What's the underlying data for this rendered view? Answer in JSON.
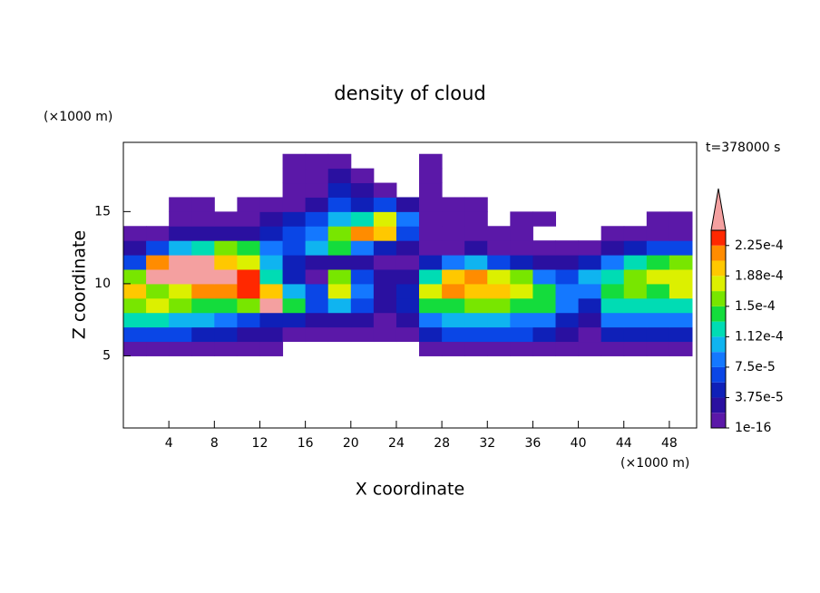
{
  "chart_data": {
    "type": "contour",
    "title": "density of cloud",
    "x_label": "X coordinate",
    "y_label": "Z coordinate",
    "x_unit": "(×1000 m)",
    "y_unit": "(×1000 m)",
    "annotation": "t=378000 s",
    "xlim": [
      0,
      50.4
    ],
    "ylim": [
      0,
      19.8
    ],
    "xticks": [
      4,
      8,
      12,
      16,
      20,
      24,
      28,
      32,
      36,
      40,
      44,
      48
    ],
    "yticks": [
      5,
      10,
      15
    ],
    "x": [
      1,
      3,
      5,
      7,
      9,
      11,
      13,
      15,
      17,
      19,
      21,
      23,
      25,
      27,
      29,
      31,
      33,
      35,
      37,
      39,
      41,
      43,
      45,
      47,
      49
    ],
    "y": [
      5.5,
      6.5,
      7.5,
      8.5,
      9.5,
      10.5,
      11.5,
      12.5,
      13.5,
      14.5,
      15.5,
      16.5,
      17.5,
      18.5
    ],
    "values": [
      [
        5e-06,
        5e-06,
        5e-06,
        5e-06,
        5e-06,
        5e-06,
        5e-06,
        null,
        null,
        null,
        null,
        null,
        null,
        5e-06,
        5e-06,
        5e-06,
        5e-06,
        5e-06,
        5e-06,
        5e-06,
        5e-06,
        5e-06,
        5e-06,
        5e-06,
        5e-06
      ],
      [
        6.5e-05,
        6.5e-05,
        6.5e-05,
        4.5e-05,
        4.5e-05,
        2.5e-05,
        2.5e-05,
        5e-06,
        5e-06,
        5e-06,
        5e-06,
        5e-06,
        5e-06,
        4.5e-05,
        6.5e-05,
        6.5e-05,
        6.5e-05,
        6.5e-05,
        4.5e-05,
        2.5e-05,
        5e-06,
        4.5e-05,
        4.5e-05,
        4.5e-05,
        4.5e-05
      ],
      [
        0.00012,
        0.00012,
        0.0001,
        0.0001,
        8.5e-05,
        6.5e-05,
        4.5e-05,
        4.5e-05,
        2.5e-05,
        2.5e-05,
        2.5e-05,
        5e-06,
        2.5e-05,
        8.5e-05,
        0.0001,
        0.0001,
        0.0001,
        8.5e-05,
        8.5e-05,
        4.5e-05,
        2.5e-05,
        8.5e-05,
        8.5e-05,
        8.5e-05,
        8.5e-05
      ],
      [
        0.00016,
        0.00018,
        0.00016,
        0.00014,
        0.00014,
        0.00016,
        0.00026,
        0.00014,
        6.5e-05,
        0.0001,
        6.5e-05,
        2.5e-05,
        4.5e-05,
        0.00014,
        0.00014,
        0.00016,
        0.00016,
        0.00014,
        0.00014,
        8.5e-05,
        4.5e-05,
        0.00012,
        0.00012,
        0.00012,
        0.00012
      ],
      [
        0.0002,
        0.00016,
        0.00018,
        0.00022,
        0.00022,
        0.000235,
        0.0002,
        0.0001,
        6.5e-05,
        0.00018,
        8.5e-05,
        2.5e-05,
        4.5e-05,
        0.00018,
        0.00022,
        0.0002,
        0.0002,
        0.00018,
        0.00014,
        8.5e-05,
        8.5e-05,
        0.00014,
        0.00016,
        0.00014,
        0.00018
      ],
      [
        0.00016,
        0.00026,
        0.00026,
        0.00026,
        0.00026,
        0.000235,
        0.00012,
        4.5e-05,
        5e-06,
        0.00016,
        6.5e-05,
        2.5e-05,
        2.5e-05,
        0.00012,
        0.0002,
        0.00022,
        0.00018,
        0.00016,
        8.5e-05,
        6.5e-05,
        0.0001,
        0.00012,
        0.00016,
        0.00018,
        0.00018
      ],
      [
        6.5e-05,
        0.00022,
        0.00026,
        0.00026,
        0.0002,
        0.00018,
        0.0001,
        4.5e-05,
        2.5e-05,
        2.5e-05,
        2.5e-05,
        5e-06,
        5e-06,
        4.5e-05,
        8.5e-05,
        0.0001,
        6.5e-05,
        4.5e-05,
        2.5e-05,
        2.5e-05,
        4.5e-05,
        8.5e-05,
        0.00012,
        0.00014,
        0.00016
      ],
      [
        2.5e-05,
        6.5e-05,
        0.0001,
        0.00012,
        0.00016,
        0.00014,
        8.5e-05,
        6.5e-05,
        0.0001,
        0.00014,
        8.5e-05,
        4.5e-05,
        2.5e-05,
        5e-06,
        5e-06,
        2.5e-05,
        5e-06,
        5e-06,
        5e-06,
        5e-06,
        5e-06,
        2.5e-05,
        4.5e-05,
        6.5e-05,
        6.5e-05
      ],
      [
        5e-06,
        5e-06,
        2.5e-05,
        2.5e-05,
        2.5e-05,
        2.5e-05,
        4.5e-05,
        6.5e-05,
        8.5e-05,
        0.00016,
        0.00022,
        0.0002,
        6.5e-05,
        5e-06,
        5e-06,
        5e-06,
        5e-06,
        5e-06,
        null,
        null,
        null,
        5e-06,
        5e-06,
        5e-06,
        5e-06
      ],
      [
        null,
        null,
        5e-06,
        5e-06,
        5e-06,
        5e-06,
        2.5e-05,
        4.5e-05,
        6.5e-05,
        0.0001,
        0.00012,
        0.00018,
        8.5e-05,
        5e-06,
        5e-06,
        5e-06,
        null,
        5e-06,
        5e-06,
        null,
        null,
        null,
        null,
        5e-06,
        5e-06
      ],
      [
        null,
        null,
        5e-06,
        5e-06,
        null,
        5e-06,
        5e-06,
        5e-06,
        2.5e-05,
        6.5e-05,
        4.5e-05,
        6.5e-05,
        2.5e-05,
        5e-06,
        5e-06,
        5e-06,
        null,
        null,
        null,
        null,
        null,
        null,
        null,
        null,
        null
      ],
      [
        null,
        null,
        null,
        null,
        null,
        null,
        null,
        5e-06,
        5e-06,
        4.5e-05,
        2.5e-05,
        5e-06,
        null,
        5e-06,
        null,
        null,
        null,
        null,
        null,
        null,
        null,
        null,
        null,
        null,
        null
      ],
      [
        null,
        null,
        null,
        null,
        null,
        null,
        null,
        5e-06,
        5e-06,
        2.5e-05,
        5e-06,
        null,
        null,
        5e-06,
        null,
        null,
        null,
        null,
        null,
        null,
        null,
        null,
        null,
        null,
        null
      ],
      [
        null,
        null,
        null,
        null,
        null,
        null,
        null,
        5e-06,
        5e-06,
        5e-06,
        null,
        null,
        null,
        5e-06,
        null,
        null,
        null,
        null,
        null,
        null,
        null,
        null,
        null,
        null,
        null
      ]
    ],
    "colorbar": {
      "levels": [
        1e-16,
        1.875e-05,
        3.75e-05,
        5.625e-05,
        7.5e-05,
        9.375e-05,
        0.0001125,
        0.00013125,
        0.00015,
        0.00016875,
        0.0001875,
        0.00020625,
        0.000225,
        0.00024375
      ],
      "colors": [
        "#5b18a8",
        "#2a10a0",
        "#0f20b8",
        "#0a46e6",
        "#1478ff",
        "#0fb4f0",
        "#00dcb4",
        "#14dc3c",
        "#78e600",
        "#dcf000",
        "#ffc800",
        "#ff8c00",
        "#ff2800"
      ],
      "over_color": "#f4a0a0",
      "ticks": [
        {
          "value": 1e-16,
          "label": "1e-16"
        },
        {
          "value": 3.75e-05,
          "label": "3.75e-5"
        },
        {
          "value": 7.5e-05,
          "label": "7.5e-5"
        },
        {
          "value": 0.0001125,
          "label": "1.12e-4"
        },
        {
          "value": 0.00015,
          "label": "1.5e-4"
        },
        {
          "value": 0.0001875,
          "label": "1.88e-4"
        },
        {
          "value": 0.000225,
          "label": "2.25e-4"
        }
      ]
    }
  }
}
